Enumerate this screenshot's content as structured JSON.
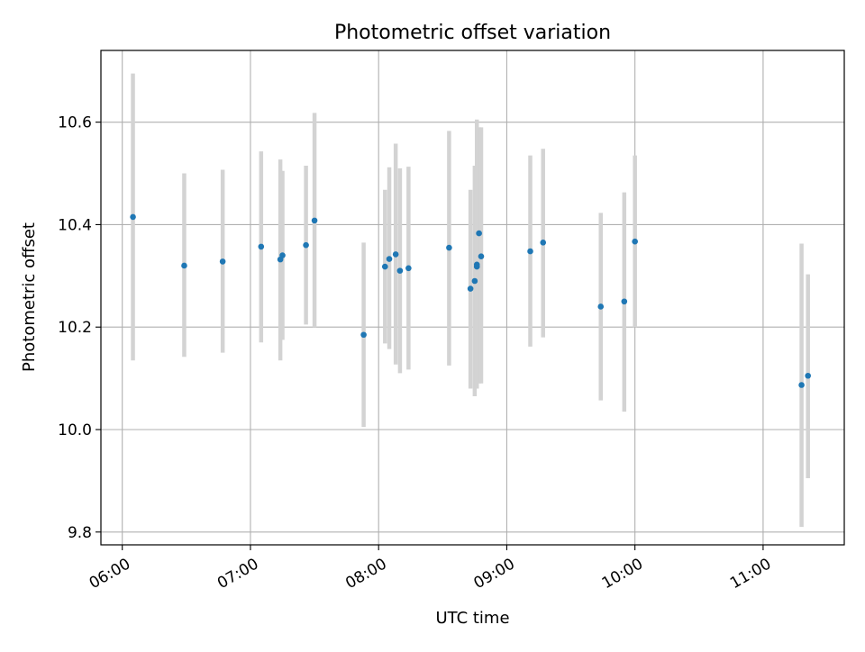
{
  "chart_data": {
    "type": "scatter",
    "title": "Photometric offset variation",
    "xlabel": "UTC time",
    "ylabel": "Photometric offset",
    "x_axis_kind": "time",
    "xlim": [
      "05:50",
      "11:38"
    ],
    "ylim": [
      9.775,
      10.74
    ],
    "x_ticks": [
      "06:00",
      "07:00",
      "08:00",
      "09:00",
      "10:00",
      "11:00"
    ],
    "y_ticks": [
      9.8,
      10.0,
      10.2,
      10.4,
      10.6
    ],
    "grid": true,
    "colors": {
      "point": "#1f77b4",
      "errorbar": "#d3d3d3",
      "grid": "#b0b0b0"
    },
    "series": [
      {
        "x": [
          "06:05",
          "06:29",
          "06:47",
          "07:05",
          "07:14",
          "07:15",
          "07:26",
          "07:30",
          "07:53",
          "08:03",
          "08:05",
          "08:08",
          "08:10",
          "08:14",
          "08:33",
          "08:43",
          "08:45",
          "08:46",
          "08:46",
          "08:47",
          "08:48",
          "09:11",
          "09:17",
          "09:44",
          "09:55",
          "10:00",
          "11:18",
          "11:21"
        ],
        "y": [
          10.415,
          10.32,
          10.328,
          10.357,
          10.332,
          10.34,
          10.36,
          10.408,
          10.185,
          10.318,
          10.333,
          10.342,
          10.31,
          10.315,
          10.355,
          10.275,
          10.29,
          10.322,
          10.318,
          10.383,
          10.338,
          10.348,
          10.365,
          10.24,
          10.25,
          10.367,
          10.087,
          10.105
        ],
        "err_low": [
          10.135,
          10.142,
          10.15,
          10.17,
          10.135,
          10.175,
          10.205,
          10.2,
          10.005,
          10.168,
          10.157,
          10.127,
          10.11,
          10.117,
          10.125,
          10.08,
          10.065,
          10.08,
          10.16,
          10.09,
          10.09,
          10.162,
          10.18,
          10.057,
          10.035,
          10.2,
          9.81,
          9.905
        ],
        "err_high": [
          10.695,
          10.5,
          10.507,
          10.543,
          10.527,
          10.505,
          10.515,
          10.618,
          10.365,
          10.468,
          10.512,
          10.558,
          10.51,
          10.513,
          10.583,
          10.468,
          10.515,
          10.572,
          10.605,
          10.59,
          10.59,
          10.535,
          10.548,
          10.423,
          10.463,
          10.535,
          10.363,
          10.303
        ]
      }
    ]
  }
}
